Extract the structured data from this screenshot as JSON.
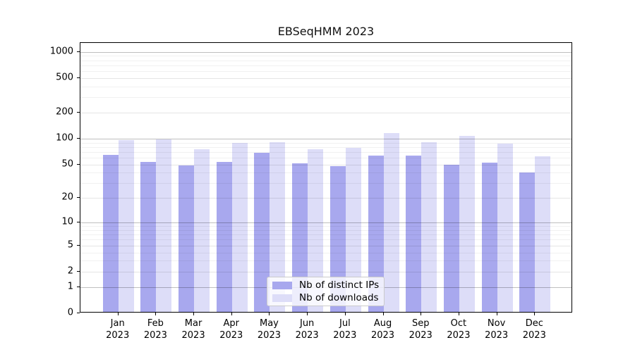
{
  "chart_data": {
    "type": "bar",
    "title": "EBSeqHMM 2023",
    "categories": [
      "Jan 2023",
      "Feb 2023",
      "Mar 2023",
      "Apr 2023",
      "May 2023",
      "Jun 2023",
      "Jul 2023",
      "Aug 2023",
      "Sep 2023",
      "Oct 2023",
      "Nov 2023",
      "Dec 2023"
    ],
    "series": [
      {
        "name": "Nb of distinct IPs",
        "color": "#a8a8ee",
        "values": [
          63,
          52,
          47,
          52,
          66,
          50,
          46,
          61,
          61,
          48,
          51,
          39
        ]
      },
      {
        "name": "Nb of downloads",
        "color": "#ddddf8",
        "values": [
          93,
          95,
          72,
          86,
          88,
          72,
          75,
          112,
          88,
          103,
          84,
          60
        ]
      }
    ],
    "yscale": "log10(1+value)",
    "yticks": [
      0,
      1,
      2,
      5,
      10,
      20,
      50,
      100,
      200,
      500,
      1000
    ],
    "decade_ticks": [
      1,
      10,
      100,
      1000
    ],
    "minor_gridline_values": [
      3,
      4,
      6,
      7,
      8,
      9,
      30,
      40,
      60,
      70,
      80,
      90,
      300,
      400,
      600,
      700,
      800,
      900
    ],
    "ylim_top_value": 1267,
    "grid": true,
    "legend_position": "bottom-center",
    "xlabel": "",
    "ylabel": ""
  },
  "colors": {
    "distinct_ips_bar": "#a8a8ee",
    "downloads_bar": "#ddddf8",
    "spine": "#000000",
    "decade_grid": "rgba(0,0,0,0.25)",
    "major_grid": "rgba(0,0,0,0.10)",
    "minor_grid": "rgba(0,0,0,0.055)",
    "background": "#ffffff"
  }
}
